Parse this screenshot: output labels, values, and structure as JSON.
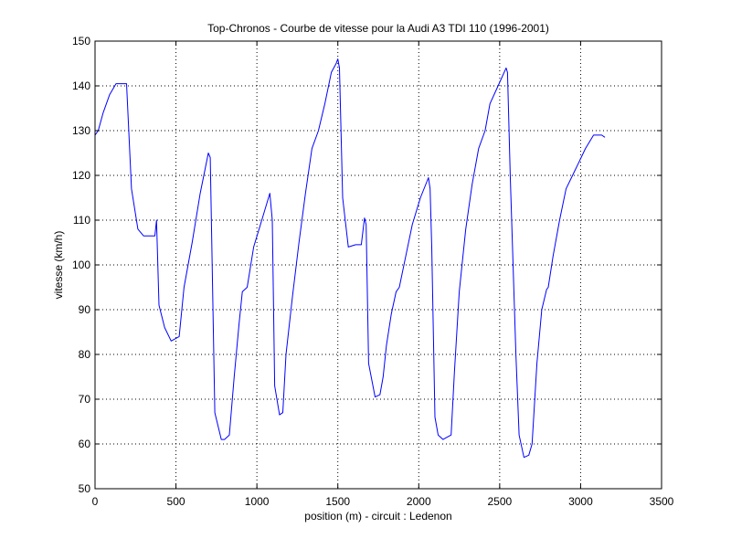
{
  "chart_data": {
    "type": "line",
    "title": "Top-Chronos - Courbe de vitesse pour la Audi A3 TDI 110 (1996-2001)",
    "xlabel": "position (m) - circuit : Ledenon",
    "ylabel": "vitesse (km/h)",
    "xlim": [
      0,
      3500
    ],
    "ylim": [
      50,
      150
    ],
    "xticks": [
      0,
      500,
      1000,
      1500,
      2000,
      2500,
      3000,
      3500
    ],
    "yticks": [
      50,
      60,
      70,
      80,
      90,
      100,
      110,
      120,
      130,
      140,
      150
    ],
    "grid": true,
    "colors": {
      "line": "#0000ff",
      "grid": "#000000",
      "axes": "#000000",
      "background": "#ffffff"
    },
    "series": [
      {
        "x": [
          0,
          20,
          50,
          90,
          130,
          160,
          195,
          225,
          265,
          300,
          345,
          370,
          380,
          395,
          430,
          470,
          520,
          550,
          600,
          650,
          700,
          712,
          740,
          780,
          800,
          830,
          860,
          890,
          910,
          940,
          980,
          1030,
          1080,
          1095,
          1110,
          1140,
          1160,
          1180,
          1220,
          1260,
          1300,
          1340,
          1380,
          1420,
          1460,
          1490,
          1500,
          1510,
          1530,
          1565,
          1610,
          1645,
          1665,
          1675,
          1690,
          1730,
          1760,
          1780,
          1800,
          1830,
          1860,
          1880,
          1920,
          1960,
          2010,
          2060,
          2070,
          2080,
          2100,
          2120,
          2150,
          2175,
          2200,
          2220,
          2250,
          2290,
          2330,
          2370,
          2410,
          2440,
          2490,
          2540,
          2548,
          2565,
          2600,
          2620,
          2650,
          2680,
          2700,
          2730,
          2760,
          2790,
          2800,
          2830,
          2870,
          2910,
          2950,
          2990,
          3030,
          3080,
          3130,
          3150
        ],
        "y": [
          129,
          130,
          134,
          138,
          140.5,
          140.5,
          140.5,
          117,
          108,
          106.5,
          106.5,
          106.5,
          110,
          91,
          86,
          83,
          84,
          95,
          105,
          116,
          125,
          124,
          67,
          61,
          61,
          62,
          75,
          87,
          94,
          95,
          104,
          110,
          116,
          110,
          73,
          66.5,
          67,
          80,
          93,
          105,
          116,
          126,
          130,
          136,
          143,
          145,
          146,
          144,
          115,
          104,
          104.5,
          104.5,
          110.5,
          109,
          78,
          70.5,
          71,
          75,
          82,
          89,
          94,
          95,
          102,
          109,
          115,
          119.5,
          117,
          104,
          66,
          62,
          61,
          61.5,
          62,
          76,
          94,
          108,
          118,
          126,
          130,
          136,
          140,
          144,
          143,
          120,
          80,
          62,
          57,
          57.5,
          60,
          78,
          90,
          94.5,
          95,
          102,
          110,
          117,
          120,
          123,
          126,
          129,
          129,
          128.5
        ]
      }
    ]
  }
}
